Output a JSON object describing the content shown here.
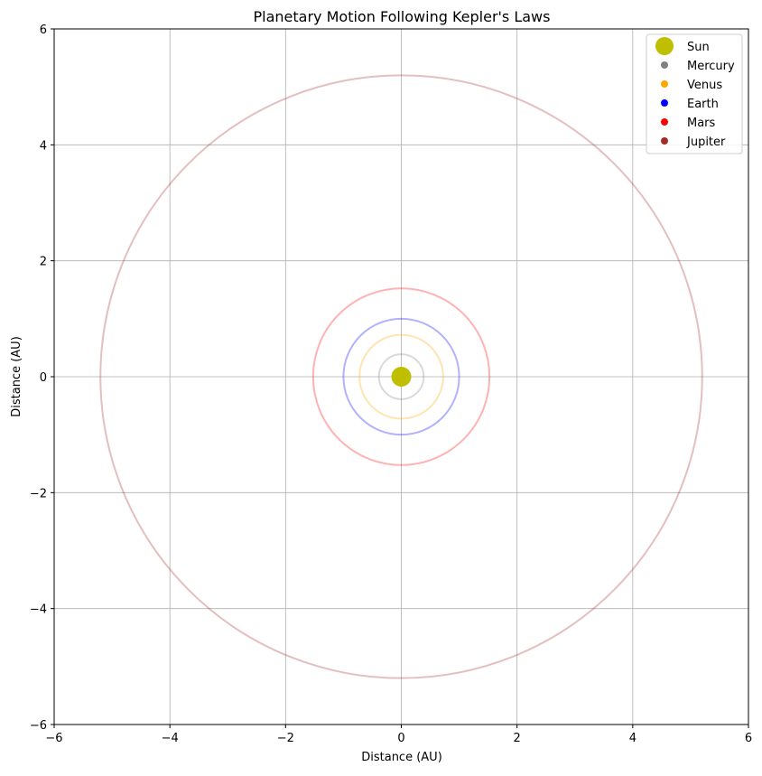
{
  "chart_data": {
    "type": "scatter",
    "title": "Planetary Motion Following Kepler's Laws",
    "xlabel": "Distance (AU)",
    "ylabel": "Distance (AU)",
    "xlim": [
      -6,
      6
    ],
    "ylim": [
      -6,
      6
    ],
    "xticks": [
      -6,
      -4,
      -2,
      0,
      2,
      4,
      6
    ],
    "yticks": [
      -6,
      -4,
      -2,
      0,
      2,
      4,
      6
    ],
    "xtick_labels": [
      "−6",
      "−4",
      "−2",
      "0",
      "2",
      "4",
      "6"
    ],
    "ytick_labels": [
      "−6",
      "−4",
      "−2",
      "0",
      "2",
      "4",
      "6"
    ],
    "grid": true,
    "legend_position": "top-right",
    "sun": {
      "name": "Sun",
      "x": 0,
      "y": 0,
      "color": "#bfbf00"
    },
    "planets": [
      {
        "name": "Mercury",
        "orbit_radius": 0.387,
        "x": 0.387,
        "y": 0,
        "color": "#808080"
      },
      {
        "name": "Venus",
        "orbit_radius": 0.723,
        "x": 0.723,
        "y": 0,
        "color": "#ffa500"
      },
      {
        "name": "Earth",
        "orbit_radius": 1.0,
        "x": 1.0,
        "y": 0,
        "color": "#0000ff"
      },
      {
        "name": "Mars",
        "orbit_radius": 1.524,
        "x": 1.524,
        "y": 0,
        "color": "#ff0000"
      },
      {
        "name": "Jupiter",
        "orbit_radius": 5.2,
        "x": 5.2,
        "y": 0,
        "color": "#a52a2a"
      }
    ]
  }
}
